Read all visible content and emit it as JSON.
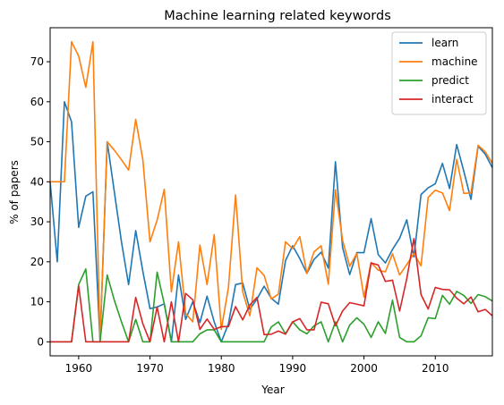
{
  "chart_data": {
    "type": "line",
    "title": "Machine learning related keywords",
    "xlabel": "Year",
    "ylabel": "% of papers",
    "xlim": [
      1956,
      2018
    ],
    "ylim": [
      -3.5,
      78.5
    ],
    "xticks": [
      1960,
      1970,
      1980,
      1990,
      2000,
      2010
    ],
    "yticks": [
      0,
      10,
      20,
      30,
      40,
      50,
      60,
      70
    ],
    "grid": false,
    "legend_position": "top-right",
    "x": [
      1956,
      1957,
      1958,
      1959,
      1960,
      1961,
      1962,
      1963,
      1964,
      1965,
      1966,
      1967,
      1968,
      1969,
      1970,
      1971,
      1972,
      1973,
      1974,
      1975,
      1976,
      1977,
      1978,
      1979,
      1980,
      1981,
      1982,
      1983,
      1984,
      1985,
      1986,
      1987,
      1988,
      1989,
      1990,
      1991,
      1992,
      1993,
      1994,
      1995,
      1996,
      1997,
      1998,
      1999,
      2000,
      2001,
      2002,
      2003,
      2004,
      2005,
      2006,
      2007,
      2008,
      2009,
      2010,
      2011,
      2012,
      2013,
      2014,
      2015,
      2016,
      2017,
      2018
    ],
    "series": [
      {
        "name": "learn",
        "color": "#1f77b4",
        "values": [
          40,
          20,
          60,
          55,
          28.6,
          36.4,
          37.5,
          0,
          50,
          37.5,
          25,
          14.3,
          27.8,
          17.6,
          8.3,
          8.7,
          9.5,
          0,
          16.7,
          5.6,
          10,
          4.8,
          11.4,
          5,
          0,
          4.5,
          14.3,
          14.7,
          8.1,
          10.7,
          13.9,
          10.9,
          9.4,
          20.3,
          24,
          20.8,
          17.1,
          20.6,
          22.4,
          18.4,
          45,
          23.6,
          16.8,
          22.3,
          22.3,
          30.8,
          21.8,
          19.7,
          23.1,
          25.9,
          30.5,
          21.2,
          36.8,
          38.5,
          39.5,
          44.6,
          38.3,
          49.3,
          42.6,
          35.6,
          48.9,
          46.9,
          43.5
        ]
      },
      {
        "name": "machine",
        "color": "#ff7f0e",
        "values": [
          40,
          40,
          40,
          75,
          71.4,
          63.6,
          75,
          0,
          50,
          47.9,
          45.5,
          42.9,
          55.6,
          45.5,
          25,
          30.4,
          38.1,
          12.5,
          25,
          7.1,
          5,
          24.2,
          14.3,
          26.8,
          3.1,
          13.6,
          36.7,
          12.5,
          6.5,
          18.5,
          16.6,
          10.7,
          11.9,
          25,
          23.3,
          26.3,
          17.1,
          22.5,
          24,
          14.4,
          38,
          25.4,
          18.9,
          22.1,
          11.2,
          19.8,
          17.9,
          17.5,
          22,
          16.7,
          19.3,
          22.1,
          19,
          36.1,
          37.9,
          37.2,
          32.8,
          45.6,
          37.1,
          37.2,
          49.1,
          47.5,
          44.6
        ]
      },
      {
        "name": "predict",
        "color": "#2ca02c",
        "values": [
          0,
          0,
          0,
          0,
          14.3,
          18.2,
          0,
          0,
          16.7,
          10.4,
          5,
          0,
          5.6,
          0,
          0,
          17.4,
          9.5,
          0,
          0,
          0,
          0,
          2,
          3,
          3,
          0,
          0,
          0,
          0,
          0,
          0,
          0,
          3.7,
          5,
          2,
          5,
          3,
          2,
          4,
          5,
          0,
          5,
          0,
          4.2,
          6,
          4.4,
          1.1,
          5,
          2.1,
          10.4,
          1.1,
          0,
          0,
          1.5,
          6,
          5.8,
          11.6,
          9.4,
          12.6,
          11.6,
          9.6,
          11.8,
          11.3,
          10.2
        ]
      },
      {
        "name": "interact",
        "color": "#d62728",
        "values": [
          0,
          0,
          0,
          0,
          14,
          0,
          0,
          0,
          0,
          0,
          0,
          0,
          11.1,
          4.5,
          0,
          8.7,
          0,
          10,
          0,
          12.1,
          10.5,
          3.1,
          5.7,
          3.1,
          3.8,
          3.8,
          8.8,
          5.5,
          9.2,
          11.1,
          1.8,
          1.9,
          2.7,
          1.9,
          5,
          5.8,
          3,
          3,
          9.9,
          9.5,
          4,
          7.7,
          9.8,
          9.4,
          9,
          19.7,
          19.2,
          15.1,
          15.4,
          7.7,
          15.8,
          25.8,
          11.8,
          8.2,
          13.6,
          13.1,
          13,
          10.9,
          9.5,
          11.2,
          7.5,
          8.1,
          6.5
        ]
      }
    ]
  }
}
